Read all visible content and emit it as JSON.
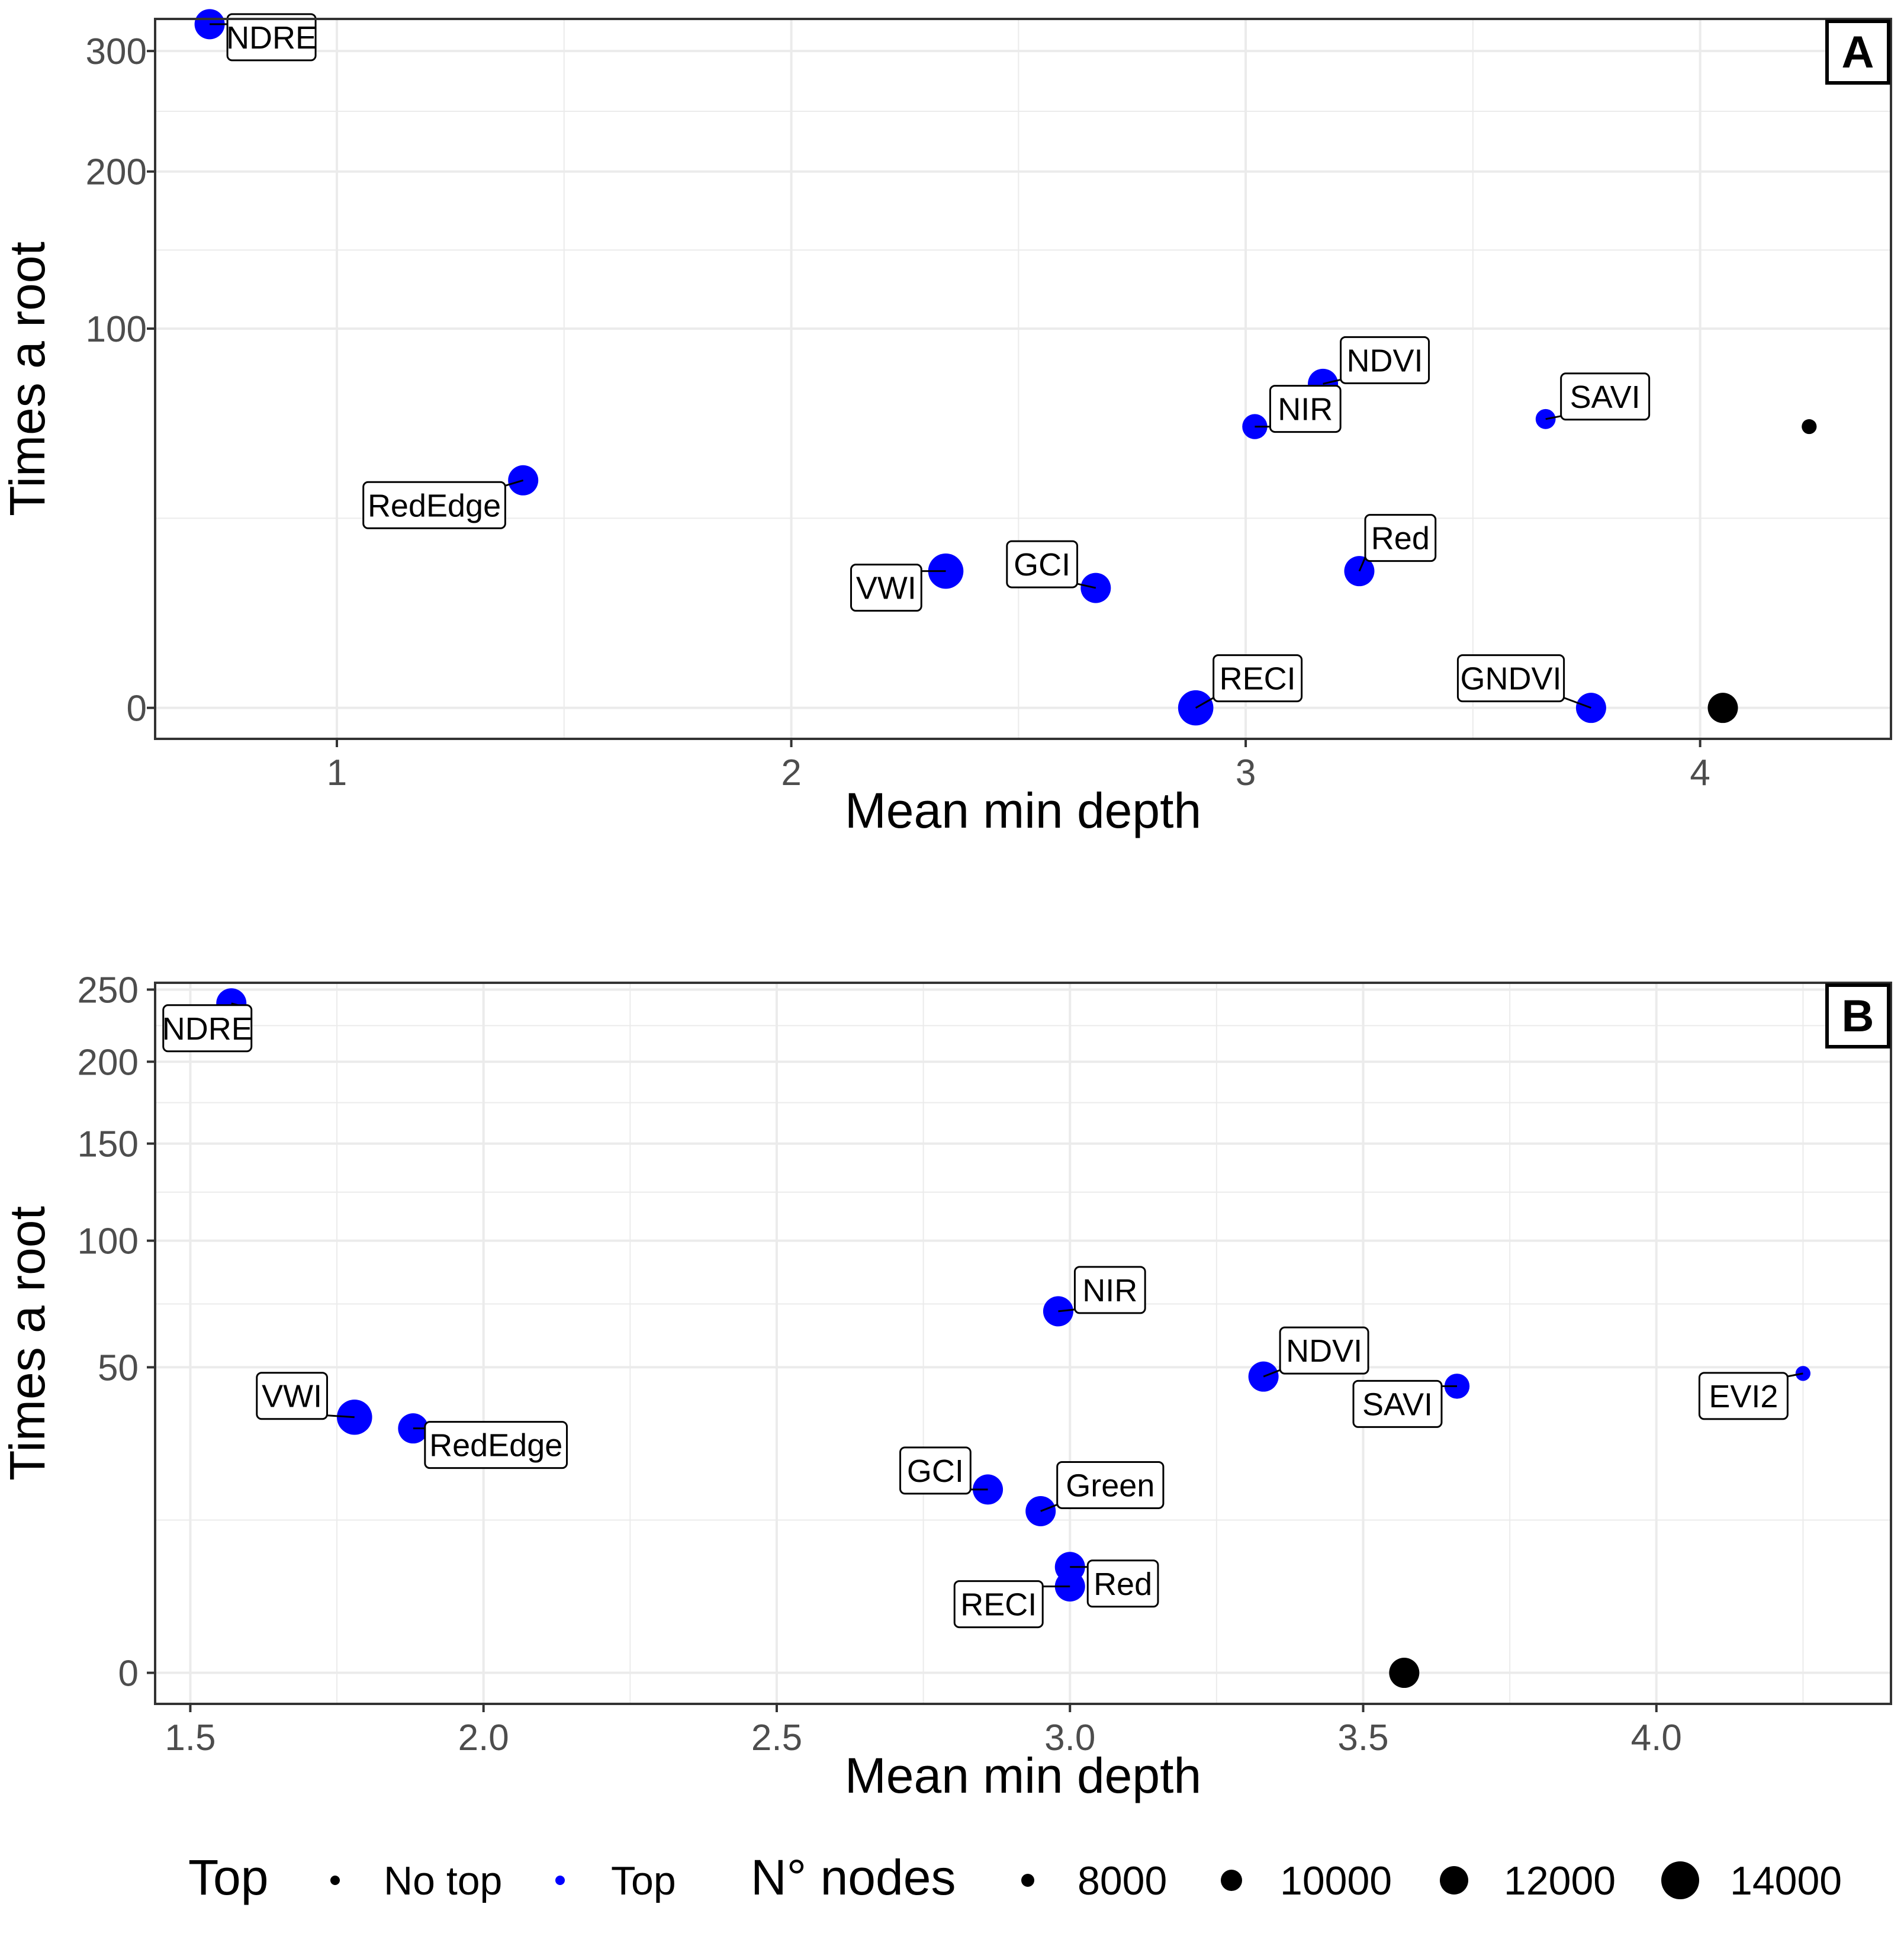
{
  "chart_data": [
    {
      "panel_label": "A",
      "type": "scatter",
      "xlabel": "Mean min depth",
      "ylabel": "Times a root",
      "x_ticks": [
        "1",
        "2",
        "3",
        "4"
      ],
      "y_ticks": [
        "0",
        "100",
        "200",
        "300"
      ],
      "xlim": [
        0.6,
        4.42
      ],
      "ylim": [
        0,
        330
      ],
      "y_scale": "sqrt",
      "grid": true,
      "points": [
        {
          "label": "NDRE",
          "x": 0.72,
          "y": 325,
          "top": "Top",
          "nodes": 10000
        },
        {
          "label": "RedEdge",
          "x": 1.41,
          "y": 36,
          "top": "Top",
          "nodes": 10000
        },
        {
          "label": "VWI",
          "x": 2.34,
          "y": 13,
          "top": "Top",
          "nodes": 12000
        },
        {
          "label": "GCI",
          "x": 2.67,
          "y": 10,
          "top": "Top",
          "nodes": 10000
        },
        {
          "label": "RECI",
          "x": 2.89,
          "y": 0,
          "top": "Top",
          "nodes": 12000
        },
        {
          "label": "NIR",
          "x": 3.02,
          "y": 55,
          "top": "Top",
          "nodes": 8000
        },
        {
          "label": "NDVI",
          "x": 3.17,
          "y": 73,
          "top": "Top",
          "nodes": 10000
        },
        {
          "label": "Red",
          "x": 3.25,
          "y": 13,
          "top": "Top",
          "nodes": 10000
        },
        {
          "label": "SAVI",
          "x": 3.66,
          "y": 58,
          "top": "Top",
          "nodes": 6000
        },
        {
          "label": "GNDVI",
          "x": 3.76,
          "y": 0,
          "top": "Top",
          "nodes": 10000
        },
        {
          "label": "",
          "x": 4.05,
          "y": 0,
          "top": "No top",
          "nodes": 10000
        },
        {
          "label": "",
          "x": 4.24,
          "y": 55,
          "top": "No top",
          "nodes": 4000
        }
      ]
    },
    {
      "panel_label": "B",
      "type": "scatter",
      "xlabel": "Mean min depth",
      "ylabel": "Times a root",
      "x_ticks": [
        "1.5",
        "2.0",
        "2.5",
        "3.0",
        "3.5",
        "4.0"
      ],
      "y_ticks": [
        "0",
        "50",
        "100",
        "150",
        "200",
        "250"
      ],
      "xlim": [
        1.44,
        4.4
      ],
      "ylim": [
        0,
        255
      ],
      "y_scale": "sqrt",
      "grid": true,
      "points": [
        {
          "label": "NDRE",
          "x": 1.57,
          "y": 240,
          "top": "Top",
          "nodes": 10000
        },
        {
          "label": "VWI",
          "x": 1.78,
          "y": 35,
          "top": "Top",
          "nodes": 12000
        },
        {
          "label": "RedEdge",
          "x": 1.88,
          "y": 32,
          "top": "Top",
          "nodes": 10000
        },
        {
          "label": "GCI",
          "x": 2.86,
          "y": 18,
          "top": "Top",
          "nodes": 10000
        },
        {
          "label": "Green",
          "x": 2.95,
          "y": 14,
          "top": "Top",
          "nodes": 10000
        },
        {
          "label": "NIR",
          "x": 2.98,
          "y": 70,
          "top": "Top",
          "nodes": 10000
        },
        {
          "label": "Red",
          "x": 3.0,
          "y": 6,
          "top": "Top",
          "nodes": 10000
        },
        {
          "label": "RECI",
          "x": 3.0,
          "y": 4,
          "top": "Top",
          "nodes": 10000
        },
        {
          "label": "NDVI",
          "x": 3.33,
          "y": 47,
          "top": "Top",
          "nodes": 10000
        },
        {
          "label": "SAVI",
          "x": 3.66,
          "y": 44,
          "top": "Top",
          "nodes": 8000
        },
        {
          "label": "EVI2",
          "x": 4.25,
          "y": 48,
          "top": "Top",
          "nodes": 4000
        },
        {
          "label": "",
          "x": 3.57,
          "y": 0,
          "top": "No top",
          "nodes": 10000
        }
      ]
    }
  ],
  "legend": {
    "top_title": "Top",
    "top_items": [
      {
        "label": "No top",
        "color": "#000000"
      },
      {
        "label": "Top",
        "color": "#0000ff"
      }
    ],
    "nodes_title": "N° nodes",
    "nodes_items": [
      "8000",
      "10000",
      "12000",
      "14000"
    ]
  },
  "colors": {
    "top": "#0000ff",
    "no_top": "#000000",
    "grid": "#ebebeb",
    "panel_border": "#333333",
    "axis_text": "#4d4d4d"
  }
}
